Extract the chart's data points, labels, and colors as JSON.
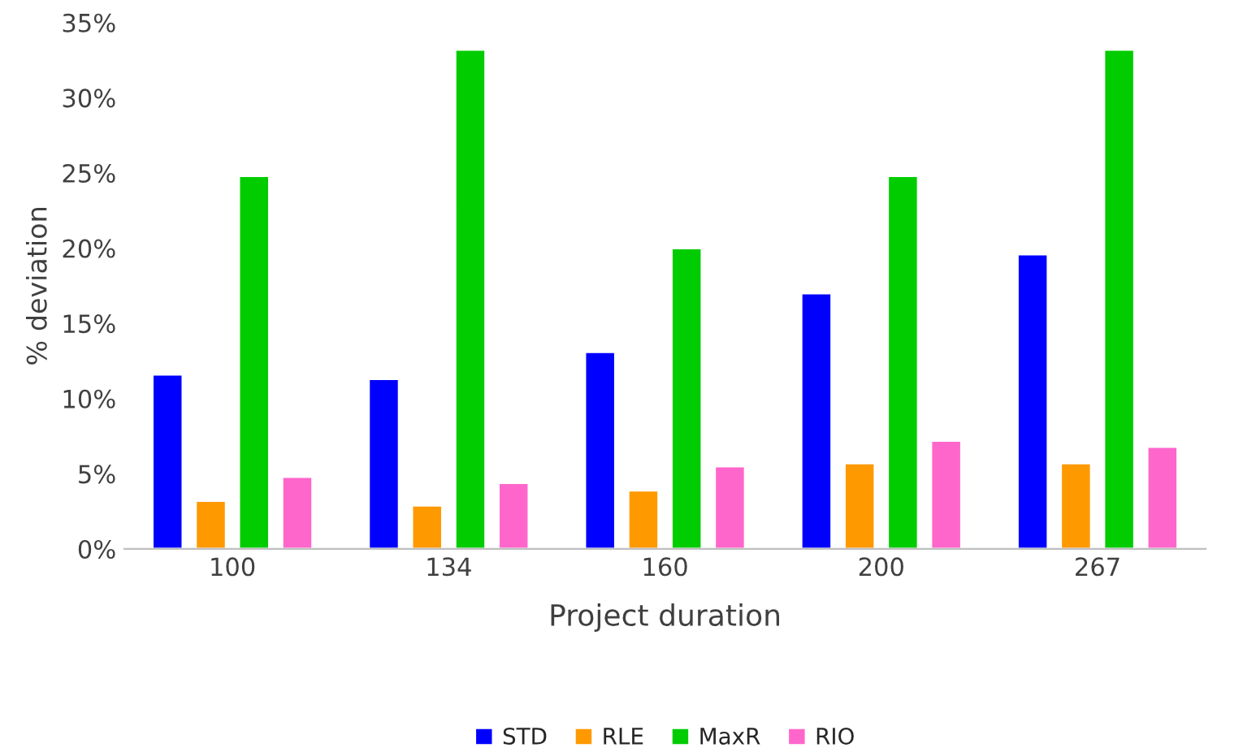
{
  "chart_data": {
    "type": "bar",
    "xlabel": "Project duration",
    "ylabel": "% deviation",
    "categories": [
      "100",
      "134",
      "160",
      "200",
      "267"
    ],
    "series": [
      {
        "name": "STD",
        "color": "#0000ff",
        "values": [
          11.6,
          11.3,
          13.1,
          17.0,
          19.6
        ]
      },
      {
        "name": "RLE",
        "color": "#ff9900",
        "values": [
          3.2,
          2.9,
          3.9,
          5.7,
          5.7
        ]
      },
      {
        "name": "MaxR",
        "color": "#00cc00",
        "values": [
          24.8,
          33.2,
          20.0,
          24.8,
          33.2
        ]
      },
      {
        "name": "RIO",
        "color": "#ff66cc",
        "values": [
          4.8,
          4.4,
          5.5,
          7.2,
          6.8
        ]
      }
    ],
    "ylim": [
      0,
      35
    ],
    "yticks": [
      {
        "value": 0,
        "label": "0%"
      },
      {
        "value": 5,
        "label": "5%"
      },
      {
        "value": 10,
        "label": "10%"
      },
      {
        "value": 15,
        "label": "15%"
      },
      {
        "value": 20,
        "label": "20%"
      },
      {
        "value": 25,
        "label": "25%"
      },
      {
        "value": 30,
        "label": "30%"
      },
      {
        "value": 35,
        "label": "35%"
      }
    ],
    "grid": false,
    "legend": "bottom"
  }
}
